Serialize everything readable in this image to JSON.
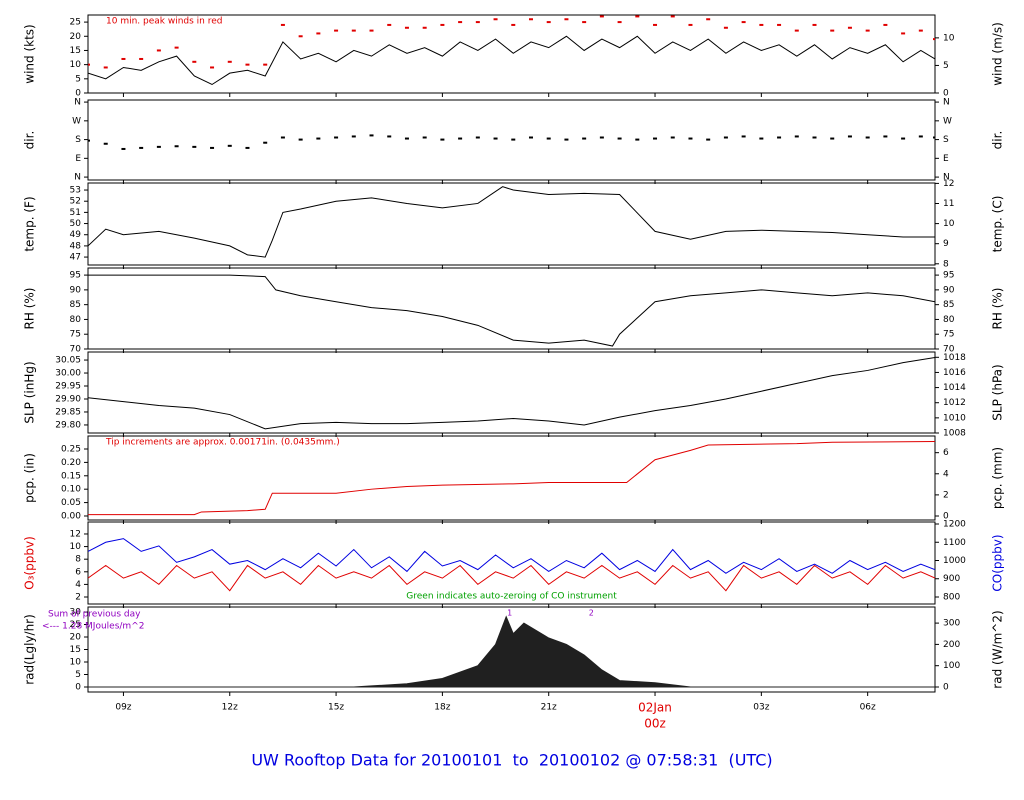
{
  "title": "UW Rooftop Data for 20100101  to  20100102 @ 07:58:31  (UTC)",
  "chart_data": [
    {
      "type": "line",
      "ylabel": "wind (kts)",
      "y2label": "wind (m/s)",
      "ylim": [
        0,
        27.5
      ],
      "yticks": [
        0,
        5,
        10,
        15,
        20,
        25
      ],
      "y2lim": [
        0,
        14.15
      ],
      "y2ticks": [
        0,
        5,
        10
      ],
      "annotation": "10 min. peak winds in red",
      "annotation_color": "#e00000",
      "annotation_corner": "top-left",
      "x": [
        8,
        8.5,
        9,
        9.5,
        10,
        10.5,
        11,
        11.5,
        12,
        12.5,
        13,
        13.5,
        14,
        14.5,
        15,
        15.5,
        16,
        16.5,
        17,
        17.5,
        18,
        18.5,
        19,
        19.5,
        20,
        20.5,
        21,
        21.5,
        22,
        22.5,
        23,
        23.5,
        24,
        24.5,
        25,
        25.5,
        26,
        26.5,
        27,
        27.5,
        28,
        28.5,
        29,
        29.5,
        30,
        30.5,
        31,
        31.5,
        31.9
      ],
      "series": [
        {
          "kind": "line",
          "color": "#000000",
          "values": [
            7,
            5,
            9,
            8,
            11,
            13,
            6,
            3,
            7,
            8,
            6,
            18,
            12,
            14,
            11,
            15,
            13,
            17,
            14,
            16,
            13,
            18,
            15,
            19,
            14,
            18,
            16,
            20,
            15,
            19,
            16,
            20,
            14,
            18,
            15,
            19,
            14,
            18,
            15,
            17,
            13,
            17,
            12,
            16,
            14,
            17,
            11,
            15,
            12
          ]
        },
        {
          "kind": "points",
          "color": "#e00000",
          "values": [
            10,
            9,
            12,
            12,
            15,
            16,
            11,
            9,
            11,
            10,
            10,
            24,
            20,
            21,
            22,
            22,
            22,
            24,
            23,
            23,
            24,
            25,
            25,
            26,
            24,
            26,
            25,
            26,
            25,
            27,
            25,
            27,
            24,
            27,
            24,
            26,
            23,
            25,
            24,
            24,
            22,
            24,
            22,
            23,
            22,
            24,
            21,
            22,
            19
          ]
        }
      ]
    },
    {
      "type": "line",
      "ylabel": "dir.",
      "y2label": "dir.",
      "ylim": [
        -14,
        370
      ],
      "yticks": [
        {
          "value": 0,
          "label": "N"
        },
        {
          "value": 90,
          "label": "E"
        },
        {
          "value": 180,
          "label": "S"
        },
        {
          "value": 270,
          "label": "W"
        },
        {
          "value": 360,
          "label": "N"
        }
      ],
      "y2lim": [
        -14,
        370
      ],
      "y2ticks": [
        {
          "value": 0,
          "label": "N"
        },
        {
          "value": 90,
          "label": "E"
        },
        {
          "value": 180,
          "label": "S"
        },
        {
          "value": 270,
          "label": "W"
        },
        {
          "value": 360,
          "label": "N"
        }
      ],
      "x": [
        8,
        8.5,
        9,
        9.5,
        10,
        10.5,
        11,
        11.5,
        12,
        12.5,
        13,
        13.5,
        14,
        14.5,
        15,
        15.5,
        16,
        16.5,
        17,
        17.5,
        18,
        18.5,
        19,
        19.5,
        20,
        20.5,
        21,
        21.5,
        22,
        22.5,
        23,
        23.5,
        24,
        24.5,
        25,
        25.5,
        26,
        26.5,
        27,
        27.5,
        28,
        28.5,
        29,
        29.5,
        30,
        30.5,
        31,
        31.5,
        31.9
      ],
      "series": [
        {
          "kind": "points",
          "color": "#000000",
          "values": [
            175,
            160,
            135,
            140,
            145,
            148,
            145,
            140,
            150,
            140,
            165,
            190,
            180,
            185,
            190,
            195,
            200,
            195,
            185,
            190,
            180,
            185,
            190,
            185,
            180,
            190,
            185,
            180,
            185,
            190,
            185,
            180,
            185,
            190,
            185,
            180,
            190,
            195,
            185,
            190,
            195,
            190,
            185,
            195,
            190,
            195,
            185,
            195,
            190
          ]
        }
      ]
    },
    {
      "type": "line",
      "ylabel": "temp. (F)",
      "y2label": "temp. (C)",
      "ylim": [
        46.29,
        53.63
      ],
      "yticks": [
        47,
        48,
        49,
        50,
        51,
        52,
        53
      ],
      "y2lim": [
        7.94,
        12.02
      ],
      "y2ticks": [
        8,
        9,
        10,
        11,
        12
      ],
      "x": [
        8,
        8.5,
        9,
        10,
        11,
        12,
        12.5,
        13,
        13.2,
        13.5,
        14,
        15,
        16,
        17,
        18,
        19,
        19.7,
        20,
        21,
        22,
        23,
        24,
        25,
        26,
        27,
        28,
        29,
        30,
        31,
        31.9
      ],
      "series": [
        {
          "kind": "line",
          "color": "#000000",
          "values": [
            48.0,
            49.5,
            49.0,
            49.3,
            48.7,
            48.0,
            47.2,
            47.0,
            48.5,
            51.0,
            51.3,
            52.0,
            52.3,
            51.8,
            51.4,
            51.8,
            53.3,
            53.0,
            52.6,
            52.7,
            52.6,
            49.3,
            48.6,
            49.3,
            49.4,
            49.3,
            49.2,
            49.0,
            48.8,
            48.8
          ]
        }
      ]
    },
    {
      "type": "line",
      "ylabel": "RH (%)",
      "y2label": "RH (%)",
      "ylim": [
        70,
        97.4
      ],
      "yticks": [
        70,
        75,
        80,
        85,
        90,
        95
      ],
      "y2lim": [
        70,
        97.4
      ],
      "y2ticks": [
        70,
        75,
        80,
        85,
        90,
        95
      ],
      "x": [
        8,
        9,
        10,
        11,
        12,
        13,
        13.3,
        14,
        15,
        16,
        17,
        18,
        19,
        20,
        21,
        22,
        22.8,
        23,
        24,
        25,
        26,
        27,
        28,
        29,
        30,
        31,
        31.9
      ],
      "series": [
        {
          "kind": "line",
          "color": "#000000",
          "values": [
            95,
            95,
            95,
            95,
            95,
            94.5,
            90,
            88,
            86,
            84,
            83,
            81,
            78,
            73,
            72,
            73,
            71,
            75,
            86,
            88,
            89,
            90,
            89,
            88,
            89,
            88,
            86
          ]
        }
      ]
    },
    {
      "type": "line",
      "ylabel": "SLP (inHg)",
      "y2label": "SLP (hPa)",
      "ylim": [
        29.769,
        30.081
      ],
      "yticks": [
        {
          "value": 29.8,
          "label": "29.80"
        },
        {
          "value": 29.85,
          "label": "29.85"
        },
        {
          "value": 29.9,
          "label": "29.90"
        },
        {
          "value": 29.95,
          "label": "29.95"
        },
        {
          "value": 30.0,
          "label": "30.00"
        },
        {
          "value": 30.05,
          "label": "30.05"
        }
      ],
      "y2lim": [
        1008,
        1018.7
      ],
      "y2ticks": [
        1008,
        1010,
        1012,
        1014,
        1016,
        1018
      ],
      "x": [
        8,
        9,
        10,
        11,
        12,
        13,
        14,
        15,
        16,
        17,
        18,
        19,
        20,
        21,
        22,
        23,
        24,
        25,
        26,
        27,
        28,
        29,
        30,
        31,
        31.9
      ],
      "series": [
        {
          "kind": "line",
          "color": "#000000",
          "values": [
            29.905,
            29.89,
            29.875,
            29.865,
            29.84,
            29.785,
            29.805,
            29.81,
            29.805,
            29.805,
            29.81,
            29.815,
            29.825,
            29.815,
            29.8,
            29.83,
            29.855,
            29.875,
            29.9,
            29.93,
            29.96,
            29.99,
            30.01,
            30.04,
            30.06
          ]
        }
      ]
    },
    {
      "type": "line",
      "ylabel": "pcp. (in)",
      "y2label": "pcp. (mm)",
      "ylim": [
        -0.015,
        0.2985
      ],
      "yticks": [
        {
          "value": 0,
          "label": "0.00"
        },
        {
          "value": 0.05,
          "label": "0.05"
        },
        {
          "value": 0.1,
          "label": "0.10"
        },
        {
          "value": 0.15,
          "label": "0.15"
        },
        {
          "value": 0.2,
          "label": "0.20"
        },
        {
          "value": 0.25,
          "label": "0.25"
        }
      ],
      "y2lim": [
        -0.38,
        7.58
      ],
      "y2ticks": [
        0,
        2,
        4,
        6
      ],
      "annotation": "Tip increments are approx. 0.00171in. (0.0435mm.)",
      "annotation_color": "#e00000",
      "annotation_corner": "top-left",
      "x": [
        8,
        11,
        11.2,
        12.5,
        13,
        13.2,
        15,
        16,
        17,
        18,
        20,
        21,
        23,
        23.2,
        24,
        25,
        25.5,
        28,
        29,
        31.9
      ],
      "series": [
        {
          "kind": "line",
          "color": "#e00000",
          "values": [
            0.005,
            0.005,
            0.015,
            0.02,
            0.025,
            0.085,
            0.085,
            0.1,
            0.11,
            0.115,
            0.12,
            0.125,
            0.125,
            0.125,
            0.21,
            0.245,
            0.265,
            0.27,
            0.275,
            0.278
          ]
        }
      ]
    },
    {
      "type": "line",
      "ylabel": "O₃(ppbv)",
      "ylabel_color": "#e00000",
      "y2label": "CO(ppbv)",
      "y2label_color": "#0000e0",
      "ylim": [
        0.89,
        13.9
      ],
      "yticks": [
        2,
        4,
        6,
        8,
        10,
        12
      ],
      "y2lim": [
        761.6,
        1211
      ],
      "y2ticks": [
        800,
        900,
        1000,
        1100,
        1200
      ],
      "annotation": "Green indicates auto-zeroing of CO instrument",
      "annotation_color": "#00a000",
      "annotation_corner": "bottom-center",
      "x": [
        8,
        8.5,
        9,
        9.5,
        10,
        10.5,
        11,
        11.5,
        12,
        12.5,
        13,
        13.5,
        14,
        14.5,
        15,
        15.5,
        16,
        16.5,
        17,
        17.5,
        18,
        18.5,
        19,
        19.5,
        20,
        20.5,
        21,
        21.5,
        22,
        22.5,
        23,
        23.5,
        24,
        24.5,
        25,
        25.5,
        26,
        26.5,
        27,
        27.5,
        28,
        28.5,
        29,
        29.5,
        30,
        30.5,
        31,
        31.5,
        31.9
      ],
      "series": [
        {
          "kind": "line",
          "color": "#e00000",
          "values": [
            5,
            7,
            5,
            6,
            4,
            7,
            5,
            6,
            3,
            7,
            5,
            6,
            4,
            7,
            5,
            6,
            5,
            7,
            4,
            6,
            5,
            7,
            4,
            6,
            5,
            7,
            4,
            6,
            5,
            7,
            5,
            6,
            4,
            7,
            5,
            6,
            3,
            7,
            5,
            6,
            4,
            7,
            5,
            6,
            4,
            7,
            5,
            6,
            5
          ]
        },
        {
          "kind": "line",
          "color": "#0000e0",
          "axis": "y2",
          "values": [
            1050,
            1100,
            1120,
            1050,
            1080,
            990,
            1020,
            1060,
            980,
            1000,
            950,
            1010,
            960,
            1040,
            970,
            1060,
            960,
            1020,
            940,
            1050,
            970,
            1000,
            950,
            1030,
            960,
            1010,
            940,
            1000,
            960,
            1040,
            950,
            1000,
            940,
            1060,
            950,
            1000,
            930,
            990,
            950,
            1010,
            940,
            980,
            930,
            1000,
            950,
            990,
            940,
            980,
            950
          ]
        }
      ]
    },
    {
      "type": "line",
      "ylabel": "rad(Lgly/hr)",
      "y2label": "rad (W/m^2)",
      "ylim": [
        -2,
        32
      ],
      "yticks": [
        0,
        5,
        10,
        15,
        20,
        25,
        30
      ],
      "y2lim": [
        -23.5,
        375.6
      ],
      "y2ticks": [
        0,
        100,
        200,
        300
      ],
      "notes": [
        "Sum of previous day",
        "<--- 1.28 MJoules/m^2"
      ],
      "notes_color": "#9000c0",
      "markers": [
        {
          "x": 19.9,
          "label": "1"
        },
        {
          "x": 22.2,
          "label": "2"
        }
      ],
      "x": [
        8,
        15.5,
        16,
        17,
        18,
        19,
        19.5,
        19.8,
        20,
        20.3,
        21,
        21.5,
        22,
        22.5,
        23,
        24,
        24.5,
        25,
        31.9
      ],
      "series": [
        {
          "kind": "area",
          "color": "#202020",
          "axis": "y2",
          "values": [
            0,
            0,
            5,
            15,
            40,
            100,
            200,
            330,
            250,
            300,
            230,
            200,
            150,
            80,
            30,
            20,
            10,
            0,
            0
          ]
        }
      ],
      "xlim": [
        8,
        31.9
      ],
      "xticks": [
        {
          "value": 9,
          "label": "09z"
        },
        {
          "value": 12,
          "label": "12z"
        },
        {
          "value": 15,
          "label": "15z"
        },
        {
          "value": 18,
          "label": "18z"
        },
        {
          "value": 21,
          "label": "21z"
        },
        {
          "value": 24,
          "label": "00z"
        },
        {
          "value": 27,
          "label": "03z"
        },
        {
          "value": 30,
          "label": "06z"
        }
      ],
      "date_label": {
        "value": 24,
        "label": "02Jan"
      },
      "date_color": "#e00000"
    }
  ]
}
